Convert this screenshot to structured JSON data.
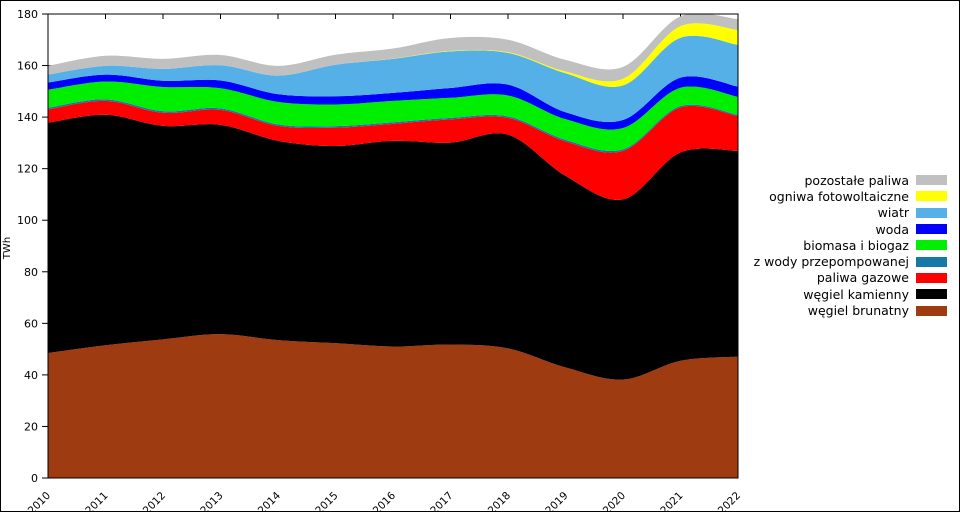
{
  "figure": {
    "background": "#ffffff",
    "border_color": "#000000"
  },
  "chart_data": {
    "type": "area",
    "stacked": true,
    "title": "",
    "xlabel": "",
    "ylabel": "TWh",
    "grid": false,
    "legend_position": "right",
    "smoothing": "spline",
    "x": [
      2010,
      2011,
      2012,
      2013,
      2014,
      2015,
      2016,
      2017,
      2018,
      2019,
      2020,
      2021,
      2022
    ],
    "ylim": [
      0,
      180
    ],
    "ytick_step": 20,
    "unit": "TWh",
    "series_bottom_to_top": [
      {
        "id": "wegiel-brunatny",
        "name": "węgiel brunatny",
        "color": "#9e3b10",
        "values": [
          48.5,
          51.5,
          53.8,
          55.8,
          53.5,
          52.3,
          51.0,
          51.8,
          50.3,
          42.9,
          38.2,
          45.5,
          47.1
        ]
      },
      {
        "id": "wegiel-kamienny",
        "name": "węgiel kamienny",
        "color": "#000000",
        "values": [
          89.3,
          89.4,
          82.8,
          81.2,
          77.3,
          76.5,
          79.8,
          78.3,
          82.9,
          74.3,
          69.9,
          80.8,
          79.8
        ]
      },
      {
        "id": "paliwa-gazowe",
        "name": "paliwa gazowe",
        "color": "#ff0000",
        "values": [
          5.2,
          5.4,
          5.1,
          5.8,
          5.8,
          7.1,
          6.6,
          9.0,
          6.5,
          13.4,
          18.8,
          17.5,
          13.5
        ]
      },
      {
        "id": "z-wody-przepompowanej",
        "name": "z wody przepompowanej",
        "color": "#1678a6",
        "values": [
          0.6,
          0.6,
          0.6,
          0.6,
          0.6,
          0.6,
          0.6,
          0.6,
          0.6,
          0.6,
          0.6,
          0.5,
          0.5
        ]
      },
      {
        "id": "biomasa-i-biogaz",
        "name": "biomasa i biogaz",
        "color": "#00ee00",
        "values": [
          7.0,
          6.9,
          9.4,
          7.8,
          8.7,
          8.4,
          8.3,
          7.8,
          8.1,
          8.0,
          8.3,
          7.1,
          7.0
        ]
      },
      {
        "id": "woda",
        "name": "woda",
        "color": "#0000ff",
        "values": [
          2.8,
          2.7,
          2.4,
          3.0,
          3.0,
          3.2,
          3.1,
          3.8,
          4.2,
          2.7,
          3.1,
          3.9,
          3.9
        ]
      },
      {
        "id": "wiatr",
        "name": "wiatr",
        "color": "#55b0e8",
        "values": [
          3.1,
          3.4,
          4.6,
          5.9,
          7.2,
          12.2,
          13.2,
          14.2,
          12.3,
          15.1,
          13.4,
          15.5,
          16.2
        ]
      },
      {
        "id": "ogniwa-fotowoltaiczne",
        "name": "ogniwa fotowoltaiczne",
        "color": "#ffff00",
        "values": [
          0.0,
          0.0,
          0.0,
          0.0,
          0.0,
          0.0,
          0.1,
          0.2,
          0.3,
          0.7,
          2.6,
          4.5,
          5.8
        ]
      },
      {
        "id": "pozostale-paliwa",
        "name": "pozostałe paliwa",
        "color": "#c0c0c0",
        "values": [
          3.4,
          3.9,
          3.9,
          4.0,
          3.8,
          3.9,
          3.9,
          5.0,
          4.8,
          4.5,
          4.6,
          3.8,
          4.2
        ]
      }
    ]
  }
}
